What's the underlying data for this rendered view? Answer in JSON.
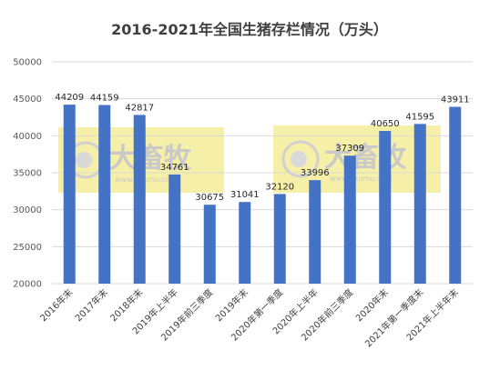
{
  "watermark": {
    "brand": "大畜牧",
    "url": "www.dxumu.com"
  },
  "colors": {
    "bar": "#4472C4",
    "grid": "#D9D9D9",
    "watermark_band": "#F5EFA8"
  },
  "chart_data": {
    "type": "bar",
    "title": "2016-2021年全国生猪存栏情况（万头）",
    "xlabel": "",
    "ylabel": "",
    "ylim": [
      20000,
      50000
    ],
    "yticks": [
      20000,
      25000,
      30000,
      35000,
      40000,
      45000,
      50000
    ],
    "grid": true,
    "categories": [
      "2016年末",
      "2017年末",
      "2018年末",
      "2019年上半年",
      "2019年前三季度",
      "2019年末",
      "2020年第一季度",
      "2020年上半年",
      "2020年前三季度",
      "2020年末",
      "2021年第一季度末",
      "2021年上半年末"
    ],
    "values": [
      44209,
      44159,
      42817,
      34761,
      30675,
      31041,
      32120,
      33996,
      37309,
      40650,
      41595,
      43911
    ]
  }
}
